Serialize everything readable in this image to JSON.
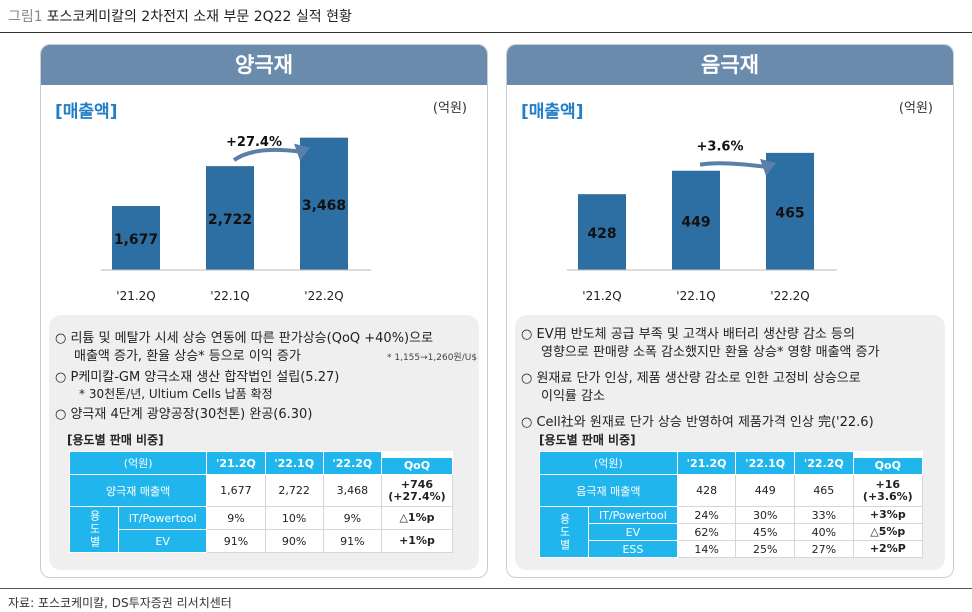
{
  "figure": {
    "label": "그림1",
    "title": "포스코케미칼의 2차전지 소재 부문 2Q22 실적 현황",
    "source": "자료: 포스코케미칼, DS투자증권 리서치센터"
  },
  "colors": {
    "header": "#6b8bad",
    "bar": "#2e6fa3",
    "table_header": "#20b5ec",
    "accent": "#1f7fc8"
  },
  "left": {
    "header": "양극재",
    "sales_label": "[매출액]",
    "unit": "(억원)",
    "growth_label": "+27.4%",
    "notes": [
      "○ 리튬 및 메탈가 시세 상승 연동에 따른 판가상승(QoQ +40%)으로",
      "매출액 증가, 환율 상승* 등으로 이익 증가",
      "* 1,155→1,260원/U$",
      "○ P케미칼-GM 양극소재 생산 합작법인 설립(5.27)",
      "* 30천톤/년, Ultium Cells 납품 확정",
      "○ 양극재 4단계 광양공장(30천톤) 완공(6.30)"
    ],
    "table": {
      "title": "[용도별 판매 비중]",
      "headers": [
        "(억원)",
        "'21.2Q",
        "'22.1Q",
        "'22.2Q",
        "QoQ"
      ],
      "sales_row": {
        "label": "양극재 매출액",
        "values": [
          "1,677",
          "2,722",
          "3,468"
        ],
        "qoq": [
          "+746",
          "(+27.4%)"
        ]
      },
      "usage_label": "용도별",
      "usage_rows": [
        {
          "label": "IT/Powertool",
          "values": [
            "9%",
            "10%",
            "9%"
          ],
          "qoq": "△1%p"
        },
        {
          "label": "EV",
          "values": [
            "91%",
            "90%",
            "91%"
          ],
          "qoq": "+1%p"
        }
      ]
    }
  },
  "right": {
    "header": "음극재",
    "sales_label": "[매출액]",
    "unit": "(억원)",
    "growth_label": "+3.6%",
    "notes": [
      "○ EV用 반도체 공급 부족 및 고객사 배터리 생산량 감소 등의",
      "영향으로 판매량 소폭 감소했지만 환율 상승* 영향 매출액 증가",
      "○ 원재료 단가 인상, 제품 생산량 감소로 인한 고정비 상승으로",
      "이익률 감소",
      "○ Cell社와 원재료 단가 상승 반영하여 제품가격 인상 完('22.6)"
    ],
    "table": {
      "title": "[용도별 판매 비중]",
      "headers": [
        "(억원)",
        "'21.2Q",
        "'22.1Q",
        "'22.2Q",
        "QoQ"
      ],
      "sales_row": {
        "label": "음극재 매출액",
        "values": [
          "428",
          "449",
          "465"
        ],
        "qoq": [
          "+16",
          "(+3.6%)"
        ]
      },
      "usage_label": "용도별",
      "usage_rows": [
        {
          "label": "IT/Powertool",
          "values": [
            "24%",
            "30%",
            "33%"
          ],
          "qoq": "+3%p"
        },
        {
          "label": "EV",
          "values": [
            "62%",
            "45%",
            "40%"
          ],
          "qoq": "△5%p"
        },
        {
          "label": "ESS",
          "values": [
            "14%",
            "25%",
            "27%"
          ],
          "qoq": "+2%P"
        }
      ]
    }
  },
  "chart_data": [
    {
      "type": "bar",
      "title": "양극재 [매출액]",
      "categories": [
        "'21.2Q",
        "'22.1Q",
        "'22.2Q"
      ],
      "values": [
        1677,
        2722,
        3468
      ],
      "labels": [
        "1,677",
        "2,722",
        "3,468"
      ],
      "unit": "(억원)",
      "annotation": "+27.4%",
      "grid": false
    },
    {
      "type": "bar",
      "title": "음극재 [매출액]",
      "categories": [
        "'21.2Q",
        "'22.1Q",
        "'22.2Q"
      ],
      "values": [
        428,
        449,
        465
      ],
      "labels": [
        "428",
        "449",
        "465"
      ],
      "unit": "(억원)",
      "annotation": "+3.6%",
      "grid": false
    }
  ]
}
